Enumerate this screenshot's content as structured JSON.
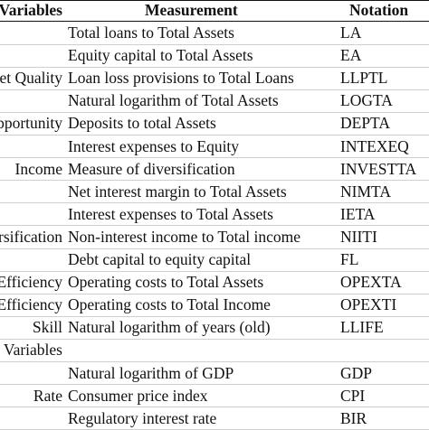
{
  "table": {
    "headers": {
      "variables": "Variables",
      "measurement": "Measurement",
      "notation": "Notation"
    },
    "rows": [
      {
        "variable": "",
        "measurement": "Total loans to Total Assets",
        "notation": "LA"
      },
      {
        "variable": "",
        "measurement": "Equity capital to Total Assets",
        "notation": "EA"
      },
      {
        "variable": "Asset Quality",
        "measurement": "Loan loss provisions to Total Loans",
        "notation": "LLPTL"
      },
      {
        "variable": "",
        "measurement": "Natural logarithm of Total Assets",
        "notation": "LOGTA"
      },
      {
        "variable": "Opportunity",
        "measurement": "Deposits to total Assets",
        "notation": "DEPTA"
      },
      {
        "variable": "",
        "measurement": "Interest expenses to Equity",
        "notation": "INTEXEQ"
      },
      {
        "variable": "Income",
        "measurement": "Measure of diversification",
        "notation": "INVESTTA"
      },
      {
        "variable": "",
        "measurement": "Net interest margin to Total Assets",
        "notation": "NIMTA"
      },
      {
        "variable": "",
        "measurement": "Interest expenses to Total Assets",
        "notation": "IETA"
      },
      {
        "variable": "Diversification",
        "measurement": "Non-interest income to Total income",
        "notation": "NIITI"
      },
      {
        "variable": "",
        "measurement": "Debt capital to equity capital",
        "notation": "FL"
      },
      {
        "variable": "Efficiency",
        "measurement": "Operating costs to Total Assets",
        "notation": "OPEXTA"
      },
      {
        "variable": "Efficiency",
        "measurement": "Operating costs to Total Income",
        "notation": "OPEXTI"
      },
      {
        "variable": "Skill",
        "measurement": "Natural logarithm of years (old)",
        "notation": "LLIFE"
      },
      {
        "variable": "Variables",
        "measurement": "",
        "notation": ""
      },
      {
        "variable": "",
        "measurement": "Natural logarithm of GDP",
        "notation": "GDP"
      },
      {
        "variable": "Rate",
        "measurement": "Consumer price index",
        "notation": "CPI"
      },
      {
        "variable": "",
        "measurement": "Regulatory interest rate",
        "notation": "BIR"
      }
    ]
  }
}
